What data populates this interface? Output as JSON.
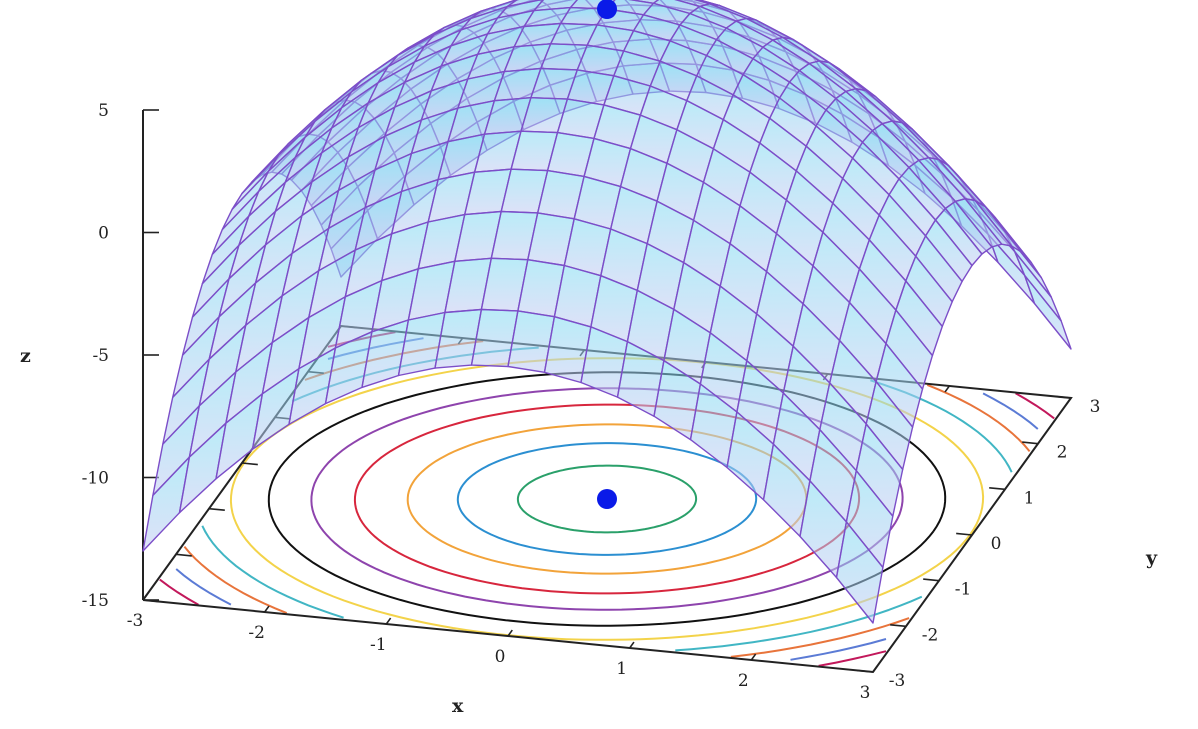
{
  "chart_data": {
    "type": "surface3d",
    "title": "",
    "function": "z = 5 - x^2 - y^2",
    "xlabel": "x",
    "ylabel": "y",
    "zlabel": "z",
    "xlim": [
      -3,
      3
    ],
    "ylim": [
      -3,
      3
    ],
    "zlim": [
      -15,
      5
    ],
    "xticks": [
      "-3",
      "-2",
      "-1",
      "0",
      "1",
      "2",
      "3"
    ],
    "yticks": [
      "-3",
      "-2",
      "-1",
      "0",
      "1",
      "2",
      "3"
    ],
    "zticks": [
      "-15",
      "-10",
      "-5",
      "0",
      "5"
    ],
    "mesh_divisions": 20,
    "contour_levels": [
      4.5,
      3.6,
      2.5,
      1.0,
      -0.5,
      -2.2,
      -3.9,
      -5.6,
      -7.2,
      -8.8,
      -10.4,
      -12.0,
      -13.5
    ],
    "contour_colors": [
      "#2aa06a",
      "#2b8fd1",
      "#f2a33a",
      "#d7263d",
      "#8e44ad",
      "#111111",
      "#f3d34a",
      "#41b6c4",
      "#e8743b",
      "#5b7bd5",
      "#c2185b",
      "#7cb342",
      "#9c27b0"
    ],
    "points": [
      {
        "x": 0,
        "y": 0,
        "z": 5,
        "location": "surface"
      },
      {
        "x": 0,
        "y": 0,
        "z": -15,
        "location": "contour-plane"
      }
    ],
    "colors": {
      "surface_top": "#7fdcf3",
      "surface_bottom": "#c2c9f2",
      "mesh": "#7c4ec8",
      "point": "#0a1ae8",
      "axes": "#222222"
    }
  }
}
